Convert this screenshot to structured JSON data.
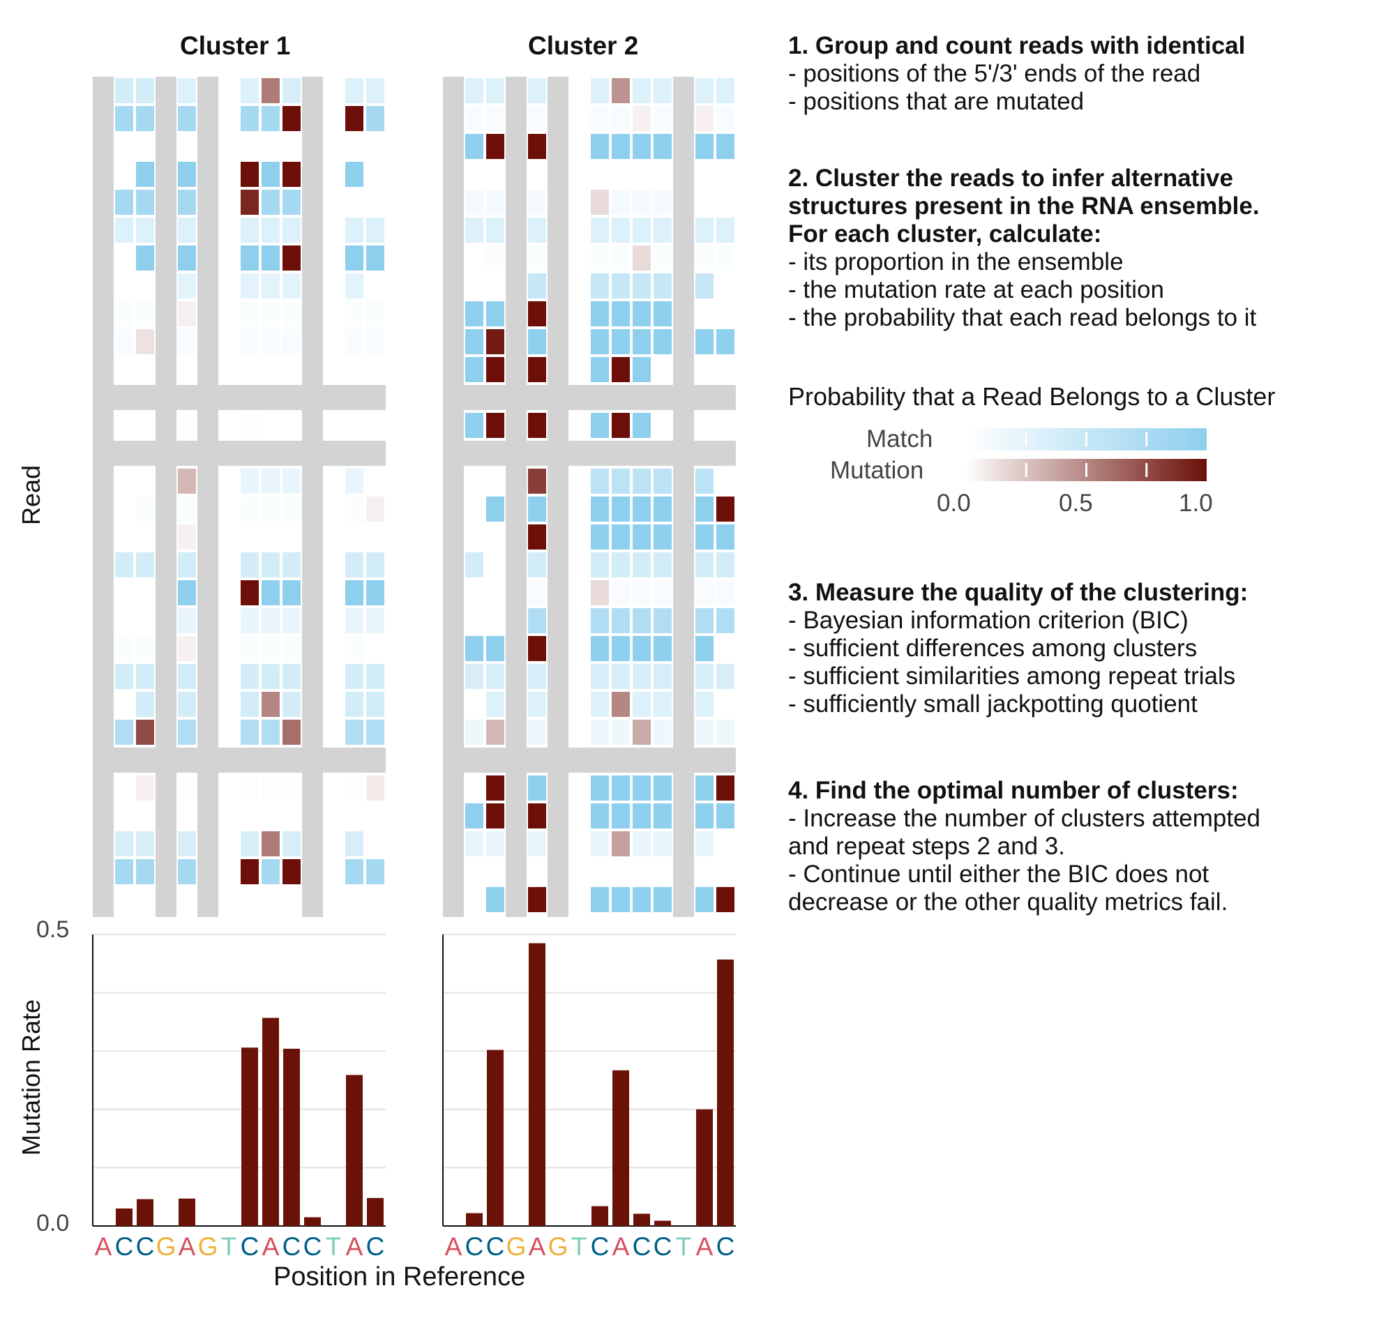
{
  "panels": [
    {
      "title": "Cluster 1",
      "bars": [
        0,
        0.03,
        0.046,
        0,
        0.047,
        0,
        0,
        0.306,
        0.357,
        0.304,
        0.015,
        0,
        0.259,
        0.048
      ],
      "grid": [
        [
          0,
          0.4,
          0.4,
          0,
          0.3,
          0,
          0,
          0.3,
          -0.55,
          0.35,
          0.3,
          0,
          0.3,
          0.3
        ],
        [
          0,
          0.8,
          0.8,
          0,
          0.8,
          0,
          0,
          0.8,
          0.8,
          -1,
          0.8,
          0,
          -1,
          0.8
        ],
        [
          0,
          0,
          0,
          0,
          0,
          0,
          0,
          0,
          0,
          0,
          0,
          0,
          0,
          0
        ],
        [
          0,
          0,
          1,
          0,
          1,
          0,
          0,
          -1,
          1,
          -1,
          1,
          0,
          1,
          0
        ],
        [
          0,
          0.8,
          0.8,
          0,
          0.8,
          0,
          0,
          -0.9,
          0.8,
          0.8,
          0,
          0,
          0,
          0
        ],
        [
          0,
          0.3,
          0.3,
          0,
          0.3,
          0,
          0,
          0.3,
          0.3,
          0.3,
          0.3,
          0,
          0.3,
          0.3
        ],
        [
          0,
          0,
          1,
          0,
          1,
          0,
          0,
          1,
          1,
          -1,
          1,
          0,
          1,
          1
        ],
        [
          0,
          0,
          0,
          0,
          0.25,
          0,
          0,
          0.25,
          0.25,
          0.25,
          0.25,
          0,
          0.25,
          0
        ],
        [
          0,
          0.04,
          0.04,
          0,
          -0.06,
          0,
          0,
          0.04,
          0.04,
          0.04,
          0.04,
          0,
          0.04,
          0.04
        ],
        [
          0,
          0.06,
          -0.12,
          0,
          0.06,
          0,
          0,
          0.06,
          0.06,
          0.06,
          0.06,
          0,
          0.06,
          0.06
        ],
        [
          0,
          0,
          0,
          0,
          0,
          0,
          0,
          0,
          0,
          0,
          0,
          0,
          0,
          0
        ],
        null,
        [
          0,
          0,
          0,
          0,
          0.02,
          0,
          0,
          0.02,
          0,
          0,
          0,
          0,
          0,
          0
        ],
        null,
        [
          0,
          0,
          0,
          0,
          -0.3,
          0,
          0,
          0.2,
          0.2,
          0.2,
          0.2,
          0,
          0.2,
          0
        ],
        [
          0,
          0,
          0.04,
          0,
          0.04,
          0,
          0,
          0.04,
          0.04,
          0.04,
          0.04,
          0,
          0.04,
          -0.06
        ],
        [
          0,
          0,
          0,
          0,
          -0.06,
          0,
          0,
          0,
          0,
          0,
          0,
          0,
          0,
          0
        ],
        [
          0,
          0.4,
          0.4,
          0,
          0.4,
          0,
          0,
          0.4,
          0.4,
          0.4,
          0.4,
          0,
          0.4,
          0.4
        ],
        [
          0,
          0,
          0,
          0,
          1,
          0,
          0,
          -1,
          1,
          1,
          1,
          0,
          1,
          1
        ],
        [
          0,
          0,
          0,
          0,
          0.2,
          0,
          0,
          0.2,
          0.2,
          0.2,
          0.2,
          0,
          0.2,
          0.2
        ],
        [
          0,
          0.04,
          0.04,
          0,
          -0.06,
          0,
          0,
          0.04,
          0.04,
          0.04,
          0.04,
          0,
          0.04,
          0
        ],
        [
          0,
          0.4,
          0.4,
          0,
          0.4,
          0,
          0,
          0.4,
          0.4,
          0.4,
          0.4,
          0,
          0.4,
          0.4
        ],
        [
          0,
          0,
          0.4,
          0,
          0.4,
          0,
          0,
          0.4,
          -0.5,
          0.4,
          0.4,
          0,
          0.4,
          0.4
        ],
        [
          0,
          0.7,
          -0.75,
          0,
          0.7,
          0,
          0,
          0.7,
          0.7,
          -0.6,
          0.7,
          0,
          0.7,
          0.7
        ],
        null,
        [
          0,
          0,
          -0.06,
          0,
          0.03,
          0,
          0,
          0.03,
          0.03,
          0.03,
          0.03,
          0,
          0.03,
          -0.08
        ],
        [
          0,
          0,
          0,
          0,
          0,
          0,
          0,
          0,
          0,
          0,
          0,
          0,
          0,
          0
        ],
        [
          0,
          0.35,
          0.35,
          0,
          0.35,
          0,
          0,
          0.35,
          -0.55,
          0.35,
          0.35,
          0,
          0.35,
          0
        ],
        [
          0,
          0.8,
          0.8,
          0,
          0.8,
          0,
          0,
          -1,
          0.8,
          -1,
          0.8,
          0,
          0.8,
          0.8
        ],
        [
          0,
          0,
          0,
          0,
          0,
          0,
          0,
          0,
          0,
          0,
          0,
          0,
          0,
          0
        ]
      ],
      "gaps": [
        0,
        3,
        5,
        10
      ]
    },
    {
      "title": "Cluster 2",
      "bars": [
        0,
        0.022,
        0.302,
        0,
        0.485,
        0,
        0,
        0.034,
        0.267,
        0.021,
        0.009,
        0,
        0.2,
        0.457
      ],
      "grid": [
        [
          0,
          0.3,
          0.3,
          0,
          0.3,
          0,
          0,
          0.3,
          -0.45,
          0.3,
          0.3,
          0,
          0.3,
          0.3
        ],
        [
          0,
          0.06,
          0.06,
          0,
          0.06,
          0,
          0,
          0.06,
          0.06,
          -0.06,
          0.06,
          0,
          -0.06,
          0.06
        ],
        [
          0,
          1,
          -1,
          0,
          -1,
          0,
          0,
          1,
          1,
          1,
          1,
          0,
          1,
          1
        ],
        [
          0,
          0,
          0,
          0,
          0,
          0,
          0,
          0,
          0,
          0,
          0,
          0,
          0,
          0
        ],
        [
          0,
          0.1,
          0.1,
          0,
          0.1,
          0,
          0,
          -0.15,
          0.1,
          0.1,
          0.1,
          0,
          0,
          0
        ],
        [
          0,
          0.3,
          0.3,
          0,
          0.3,
          0,
          0,
          0.3,
          0.3,
          0.3,
          0.3,
          0,
          0.3,
          0.3
        ],
        [
          0,
          0,
          0.04,
          0,
          0.04,
          0,
          0,
          0.04,
          0.04,
          -0.15,
          0.04,
          0,
          0.04,
          0.04
        ],
        [
          0,
          0,
          0,
          0,
          0.5,
          0,
          0,
          0.5,
          0.5,
          0.5,
          0.5,
          0,
          0.5,
          0
        ],
        [
          0,
          1,
          1,
          0,
          -1,
          0,
          0,
          1,
          1,
          1,
          1,
          0,
          0,
          0
        ],
        [
          0,
          1,
          -0.95,
          0,
          1,
          0,
          0,
          1,
          1,
          1,
          1,
          0,
          1,
          1
        ],
        [
          0,
          1,
          -1,
          0,
          -1,
          0,
          0,
          1,
          -1,
          1,
          0,
          0,
          0,
          0
        ],
        null,
        [
          0,
          1,
          -1,
          0,
          -1,
          0,
          0,
          1,
          -1,
          1,
          0,
          0,
          0,
          0
        ],
        null,
        [
          0,
          0,
          0,
          0,
          -0.8,
          0,
          0,
          0.6,
          0.6,
          0.6,
          0.6,
          0,
          0.6,
          0
        ],
        [
          0,
          0,
          1,
          0,
          1,
          0,
          0,
          1,
          1,
          1,
          1,
          0,
          1,
          -1
        ],
        [
          0,
          0,
          0,
          0,
          -1,
          0,
          0,
          1,
          1,
          1,
          1,
          0,
          1,
          1
        ],
        [
          0,
          0.4,
          0,
          0,
          0.4,
          0,
          0,
          0.4,
          0.4,
          0.4,
          0.4,
          0,
          0.4,
          0.4
        ],
        [
          0,
          0,
          0,
          0,
          0.06,
          0,
          0,
          -0.15,
          0.06,
          0.06,
          0.06,
          0,
          0.06,
          0.06
        ],
        [
          0,
          0,
          0,
          0,
          0.7,
          0,
          0,
          0.7,
          0.7,
          0.7,
          0.7,
          0,
          0.7,
          0.7
        ],
        [
          0,
          1,
          1,
          0,
          -1,
          0,
          0,
          1,
          1,
          1,
          1,
          0,
          1,
          0
        ],
        [
          0,
          0.35,
          0.35,
          0,
          0.35,
          0,
          0,
          0.35,
          0.35,
          0.35,
          0.35,
          0,
          0.35,
          0.35
        ],
        [
          0,
          0,
          0.3,
          0,
          0.3,
          0,
          0,
          0.3,
          -0.5,
          0.3,
          0.3,
          0,
          0.3,
          0
        ],
        [
          0,
          0.15,
          -0.3,
          0,
          0.15,
          0,
          0,
          0.15,
          0.15,
          -0.35,
          0.15,
          0,
          0.15,
          0.15
        ],
        null,
        [
          0,
          0,
          -1,
          0,
          1,
          0,
          0,
          1,
          1,
          1,
          1,
          0,
          1,
          -1
        ],
        [
          0,
          1,
          -1,
          0,
          -1,
          0,
          0,
          1,
          1,
          1,
          1,
          0,
          1,
          1
        ],
        [
          0,
          0.2,
          0.2,
          0,
          0.2,
          0,
          0,
          0.2,
          -0.4,
          0.2,
          0.2,
          0,
          0.2,
          0
        ],
        [
          0,
          0,
          0,
          0,
          0,
          0,
          0,
          0,
          0,
          0,
          0,
          0,
          0,
          0
        ],
        [
          0,
          0,
          1,
          0,
          -1,
          0,
          0,
          1,
          1,
          1,
          1,
          0,
          1,
          -1
        ]
      ],
      "gaps": [
        0,
        3,
        5,
        11
      ]
    }
  ],
  "sequence": [
    "A",
    "C",
    "C",
    "G",
    "A",
    "G",
    "T",
    "C",
    "A",
    "C",
    "C",
    "T",
    "A",
    "C"
  ],
  "base_colors": {
    "A": "#d55060",
    "C": "#005f86",
    "G": "#f0b03c",
    "T": "#7fcdbe"
  },
  "colors": {
    "match": "#8ecfee",
    "mutation": "#6b0f08",
    "bar": "#6b1208",
    "bg_gray": "#d3d3d3"
  },
  "axes": {
    "x_label": "Position in Reference",
    "y_label_heatmap": "Read",
    "y_label_bars": "Mutation Rate",
    "y_ticks": [
      "0.5",
      "0.0"
    ],
    "ylim": [
      0,
      0.5
    ]
  },
  "legend": {
    "title": "Probability that a Read Belongs to a Cluster",
    "match_label": "Match",
    "mutation_label": "Mutation",
    "ticks": [
      "0.0",
      "0.5",
      "1.0"
    ]
  },
  "steps": [
    {
      "heading": [
        "1. Group and count reads with identical"
      ],
      "items": [
        "- positions of the 5'/3' ends of the read",
        "- positions that are mutated"
      ]
    },
    {
      "heading": [
        "2. Cluster the reads to infer alternative",
        "structures present in the RNA ensemble.",
        "For each cluster, calculate:"
      ],
      "items": [
        "- its proportion in the ensemble",
        "- the mutation rate at each position",
        "- the probability that each read belongs to it"
      ]
    },
    {
      "heading": [
        "3. Measure the quality of the clustering:"
      ],
      "items": [
        "- Bayesian information criterion (BIC)",
        "- sufficient differences among clusters",
        "- sufficient similarities among repeat trials",
        "- sufficiently small jackpotting quotient"
      ]
    },
    {
      "heading": [
        "4. Find the optimal number of clusters:"
      ],
      "items": [
        "- Increase the number of clusters attempted",
        "and repeat steps 2 and 3.",
        "- Continue until either the BIC does not",
        "decrease or the other quality metrics fail."
      ]
    }
  ],
  "chart_data": [
    {
      "type": "bar",
      "title": "Cluster 1",
      "categories": [
        "A",
        "C",
        "C",
        "G",
        "A",
        "G",
        "T",
        "C",
        "A",
        "C",
        "C",
        "T",
        "A",
        "C"
      ],
      "values": [
        0,
        0.03,
        0.046,
        0,
        0.047,
        0,
        0,
        0.306,
        0.357,
        0.304,
        0.015,
        0,
        0.259,
        0.048
      ],
      "xlabel": "Position in Reference",
      "ylabel": "Mutation Rate",
      "ylim": [
        0,
        0.5
      ]
    },
    {
      "type": "bar",
      "title": "Cluster 2",
      "categories": [
        "A",
        "C",
        "C",
        "G",
        "A",
        "G",
        "T",
        "C",
        "A",
        "C",
        "C",
        "T",
        "A",
        "C"
      ],
      "values": [
        0,
        0.022,
        0.302,
        0,
        0.485,
        0,
        0,
        0.034,
        0.267,
        0.021,
        0.009,
        0,
        0.2,
        0.457
      ],
      "xlabel": "Position in Reference",
      "ylabel": "Mutation Rate",
      "ylim": [
        0,
        0.5
      ]
    }
  ]
}
